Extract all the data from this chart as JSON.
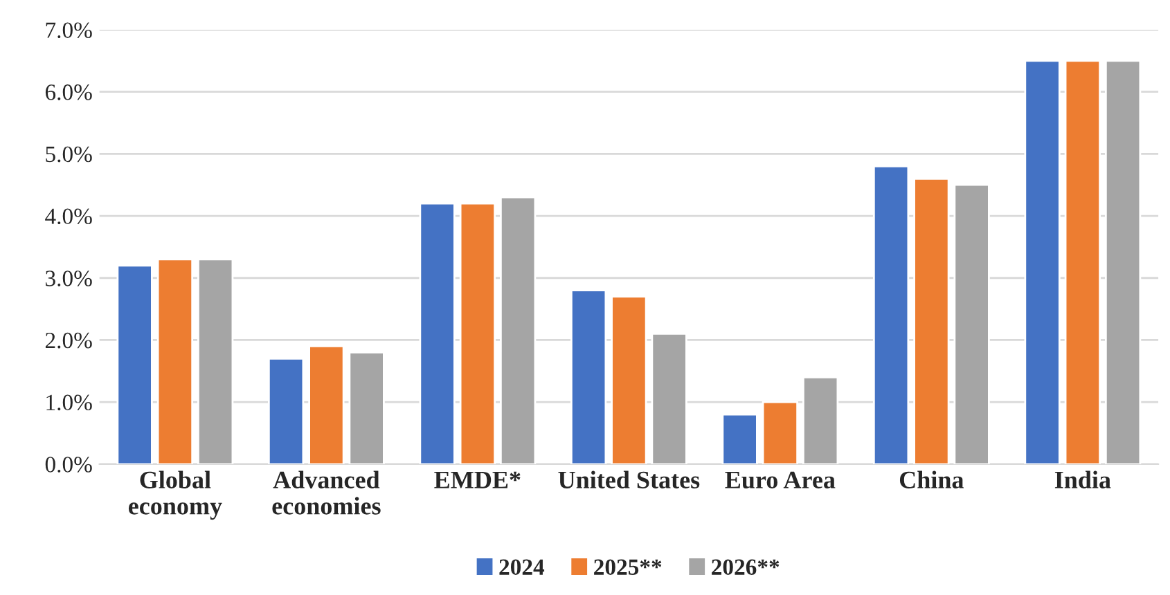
{
  "chart_data": {
    "type": "bar",
    "categories": [
      "Global\neconomy",
      "Advanced\neconomies",
      "EMDE*",
      "United States",
      "Euro Area",
      "China",
      "India"
    ],
    "series": [
      {
        "name": "2024",
        "color": "#4472c4",
        "values": [
          3.2,
          1.7,
          4.2,
          2.8,
          0.8,
          4.8,
          6.5
        ]
      },
      {
        "name": "2025**",
        "color": "#ed7d31",
        "values": [
          3.3,
          1.9,
          4.2,
          2.7,
          1.0,
          4.6,
          6.5
        ]
      },
      {
        "name": "2026**",
        "color": "#a5a5a5",
        "values": [
          3.3,
          1.8,
          4.3,
          2.1,
          1.4,
          4.5,
          6.5
        ]
      }
    ],
    "ylim": [
      0,
      7
    ],
    "yticks": [
      {
        "value": 0,
        "label": "0.0%"
      },
      {
        "value": 1,
        "label": "1.0%"
      },
      {
        "value": 2,
        "label": "2.0%"
      },
      {
        "value": 3,
        "label": "3.0%"
      },
      {
        "value": 4,
        "label": "4.0%"
      },
      {
        "value": 5,
        "label": "5.0%"
      },
      {
        "value": 6,
        "label": "6.0%"
      },
      {
        "value": 7,
        "label": "7.0%"
      }
    ],
    "grid": "y",
    "legend": "bottom"
  }
}
